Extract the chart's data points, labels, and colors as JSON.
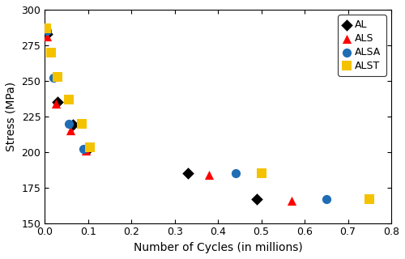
{
  "xlabel": "Number of Cycles (in millions)",
  "ylabel": "Stress (MPa)",
  "xlim": [
    0,
    0.8
  ],
  "ylim": [
    150,
    300
  ],
  "xticks": [
    0.0,
    0.1,
    0.2,
    0.3,
    0.4,
    0.5,
    0.6,
    0.7,
    0.8
  ],
  "yticks": [
    150,
    175,
    200,
    225,
    250,
    275,
    300
  ],
  "AL": {
    "color": "black",
    "marker": "D",
    "s": 55,
    "x": [
      0.005,
      0.03,
      0.065,
      0.1,
      0.33,
      0.49
    ],
    "y": [
      283,
      235,
      219,
      202,
      185,
      167
    ]
  },
  "ALS": {
    "color": "red",
    "marker": "^",
    "s": 65,
    "x": [
      0.005,
      0.025,
      0.06,
      0.095,
      0.38,
      0.57
    ],
    "y": [
      281,
      234,
      215,
      201,
      184,
      166
    ]
  },
  "ALSA": {
    "color": "#1e6db5",
    "marker": "o",
    "s": 65,
    "x": [
      0.005,
      0.02,
      0.055,
      0.09,
      0.44,
      0.65
    ],
    "y": [
      285,
      252,
      220,
      202,
      185,
      167
    ]
  },
  "ALST": {
    "color": "#f5c200",
    "marker": "s",
    "s": 70,
    "x": [
      0.003,
      0.015,
      0.03,
      0.055,
      0.085,
      0.105,
      0.5,
      0.75
    ],
    "y": [
      287,
      270,
      253,
      237,
      220,
      203,
      185,
      167
    ]
  },
  "background_color": "#ffffff",
  "legend_loc": "upper right"
}
